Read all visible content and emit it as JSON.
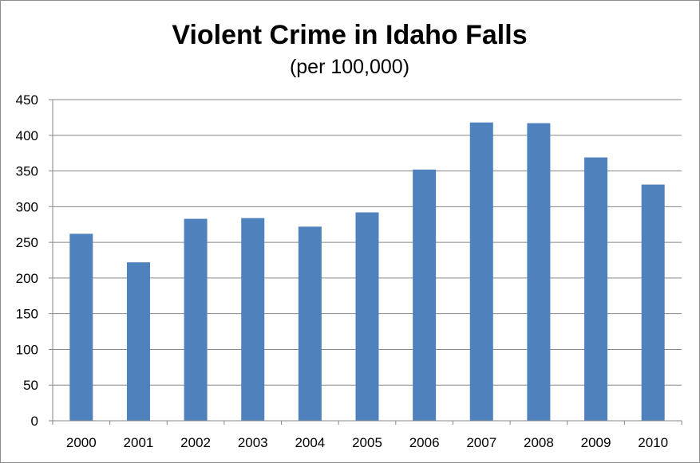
{
  "chart_data": {
    "type": "bar",
    "title": "Violent Crime in Idaho Falls",
    "subtitle": "(per 100,000)",
    "categories": [
      "2000",
      "2001",
      "2002",
      "2003",
      "2004",
      "2005",
      "2006",
      "2007",
      "2008",
      "2009",
      "2010"
    ],
    "values": [
      262,
      222,
      283,
      284,
      272,
      292,
      352,
      418,
      417,
      369,
      331
    ],
    "xlabel": "",
    "ylabel": "",
    "ylim": [
      0,
      450
    ],
    "yticks": [
      "0",
      "50",
      "100",
      "150",
      "200",
      "250",
      "300",
      "350",
      "400",
      "450"
    ],
    "grid": true,
    "legend": "none",
    "colors": {
      "bar": "#4f81bd",
      "grid": "#868686",
      "axis": "#868686",
      "text": "#000000"
    }
  }
}
